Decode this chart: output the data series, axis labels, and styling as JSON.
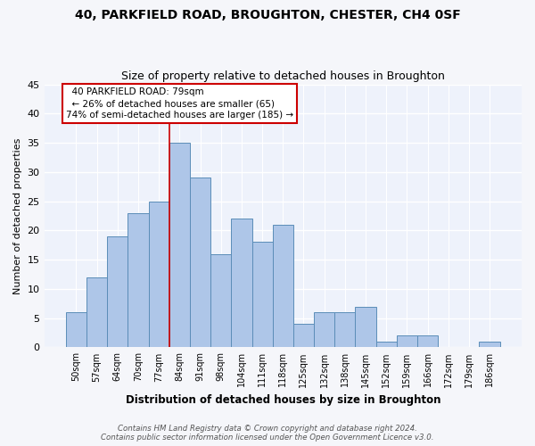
{
  "title1": "40, PARKFIELD ROAD, BROUGHTON, CHESTER, CH4 0SF",
  "title2": "Size of property relative to detached houses in Broughton",
  "xlabel": "Distribution of detached houses by size in Broughton",
  "ylabel": "Number of detached properties",
  "categories": [
    "50sqm",
    "57sqm",
    "64sqm",
    "70sqm",
    "77sqm",
    "84sqm",
    "91sqm",
    "98sqm",
    "104sqm",
    "111sqm",
    "118sqm",
    "125sqm",
    "132sqm",
    "138sqm",
    "145sqm",
    "152sqm",
    "159sqm",
    "166sqm",
    "172sqm",
    "179sqm",
    "186sqm"
  ],
  "values": [
    6,
    12,
    19,
    23,
    25,
    35,
    29,
    16,
    22,
    18,
    21,
    4,
    6,
    6,
    7,
    1,
    2,
    2,
    0,
    0,
    1
  ],
  "bar_color": "#aec6e8",
  "bar_edge_color": "#5b8db8",
  "background_color": "#eef2fb",
  "grid_color": "#ffffff",
  "ylim": [
    0,
    45
  ],
  "yticks": [
    0,
    5,
    10,
    15,
    20,
    25,
    30,
    35,
    40,
    45
  ],
  "property_line_x": 4.5,
  "annotation_line1": "  40 PARKFIELD ROAD: 79sqm",
  "annotation_line2": "  ← 26% of detached houses are smaller (65)",
  "annotation_line3": "74% of semi-detached houses are larger (185) →",
  "annotation_box_color": "#ffffff",
  "annotation_border_color": "#cc0000",
  "footer_line1": "Contains HM Land Registry data © Crown copyright and database right 2024.",
  "footer_line2": "Contains public sector information licensed under the Open Government Licence v3.0."
}
